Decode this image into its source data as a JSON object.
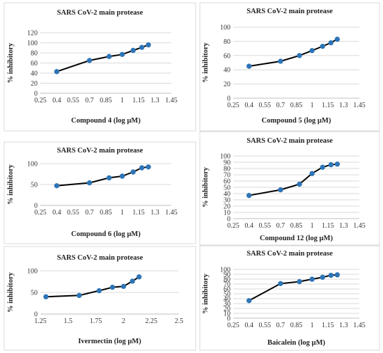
{
  "chart_data": [
    {
      "type": "line",
      "title": "SARS CoV-2 main protease",
      "xlabel": "Compound 4 (log µM)",
      "ylabel": "% inhibitory",
      "xlim": [
        0.25,
        1.45
      ],
      "ylim": [
        0,
        120
      ],
      "xticks": [
        "0.25",
        "0.4",
        "0.55",
        "0.7",
        "0.85",
        "1",
        "1.15",
        "1.3",
        "1.45"
      ],
      "yticks": [
        "0",
        "20",
        "40",
        "60",
        "80",
        "100",
        "120"
      ],
      "grid": true,
      "points": [
        {
          "x": 0.4,
          "y": 43
        },
        {
          "x": 0.7,
          "y": 65
        },
        {
          "x": 0.88,
          "y": 73
        },
        {
          "x": 1.0,
          "y": 77
        },
        {
          "x": 1.1,
          "y": 85
        },
        {
          "x": 1.18,
          "y": 91
        },
        {
          "x": 1.24,
          "y": 96
        }
      ]
    },
    {
      "type": "line",
      "title": "SARS CoV-2 main protease",
      "xlabel": "Compound 5 (log µM)",
      "ylabel": "% inhibitory",
      "xlim": [
        0.25,
        1.45
      ],
      "ylim": [
        0,
        100
      ],
      "xticks": [
        "0.25",
        "0.4",
        "0.55",
        "0.7",
        "0.85",
        "1",
        "1.15",
        "1.3",
        "1.45"
      ],
      "yticks": [
        "0",
        "20",
        "40",
        "60",
        "80",
        "100"
      ],
      "grid": true,
      "points": [
        {
          "x": 0.4,
          "y": 45
        },
        {
          "x": 0.7,
          "y": 52
        },
        {
          "x": 0.88,
          "y": 60
        },
        {
          "x": 1.0,
          "y": 67
        },
        {
          "x": 1.1,
          "y": 73
        },
        {
          "x": 1.18,
          "y": 78
        },
        {
          "x": 1.24,
          "y": 83
        }
      ]
    },
    {
      "type": "line",
      "title": "SARS CoV-2 main protease",
      "xlabel": "Compound 6 (log µM)",
      "ylabel": "% inhibitory",
      "xlim": [
        0.25,
        1.45
      ],
      "ylim": [
        0,
        100
      ],
      "xticks": [
        "0.25",
        "0.4",
        "0.55",
        "0.7",
        "0.85",
        "1",
        "1.15",
        "1.3",
        "1.45"
      ],
      "yticks": [
        "0",
        "50",
        "100"
      ],
      "grid": true,
      "points": [
        {
          "x": 0.4,
          "y": 47
        },
        {
          "x": 0.7,
          "y": 54
        },
        {
          "x": 0.88,
          "y": 66
        },
        {
          "x": 1.0,
          "y": 70
        },
        {
          "x": 1.1,
          "y": 80
        },
        {
          "x": 1.18,
          "y": 90
        },
        {
          "x": 1.24,
          "y": 92
        }
      ]
    },
    {
      "type": "line",
      "title": "SARS CoV-2 main protease",
      "xlabel": "Compound 12 (log µM)",
      "ylabel": "% inhibitory",
      "xlim": [
        0.25,
        1.45
      ],
      "ylim": [
        0,
        100
      ],
      "xticks": [
        "0.25",
        "0.4",
        "0.55",
        "0.7",
        "0.85",
        "1",
        "1.15",
        "1.3",
        "1.45"
      ],
      "yticks": [
        "0",
        "10",
        "20",
        "30",
        "40",
        "50",
        "60",
        "70",
        "80",
        "90",
        "100"
      ],
      "grid": true,
      "points": [
        {
          "x": 0.4,
          "y": 37
        },
        {
          "x": 0.7,
          "y": 46
        },
        {
          "x": 0.88,
          "y": 55
        },
        {
          "x": 1.0,
          "y": 72
        },
        {
          "x": 1.1,
          "y": 82
        },
        {
          "x": 1.18,
          "y": 86
        },
        {
          "x": 1.24,
          "y": 87
        }
      ]
    },
    {
      "type": "line",
      "title": "SARS CoV-2 main protease",
      "xlabel": "Ivermectin (log µM)",
      "ylabel": "% inhibitory",
      "xlim": [
        1.25,
        2.5
      ],
      "ylim": [
        0,
        100
      ],
      "xticks": [
        "1.25",
        "1.5",
        "1.75",
        "2",
        "2.25",
        "2.5"
      ],
      "yticks": [
        "0",
        "50",
        "100"
      ],
      "grid": true,
      "points": [
        {
          "x": 1.3,
          "y": 40
        },
        {
          "x": 1.6,
          "y": 43
        },
        {
          "x": 1.78,
          "y": 54
        },
        {
          "x": 1.9,
          "y": 62
        },
        {
          "x": 2.0,
          "y": 64
        },
        {
          "x": 2.08,
          "y": 76
        },
        {
          "x": 2.14,
          "y": 86
        }
      ]
    },
    {
      "type": "line",
      "title": "SARS CoV-2 main protease",
      "xlabel": "Baicalein (log µM)",
      "ylabel": "% inhibitory",
      "xlim": [
        0.25,
        1.45
      ],
      "ylim": [
        0,
        100
      ],
      "xticks": [
        "0.25",
        "0.4",
        "0.55",
        "0.7",
        "0.85",
        "1",
        "1.15",
        "1.3",
        "1.45"
      ],
      "yticks": [
        "0",
        "10",
        "20",
        "30",
        "40",
        "50",
        "60",
        "70",
        "80",
        "90",
        "100"
      ],
      "grid": true,
      "points": [
        {
          "x": 0.4,
          "y": 36
        },
        {
          "x": 0.7,
          "y": 71
        },
        {
          "x": 0.88,
          "y": 75
        },
        {
          "x": 1.0,
          "y": 80
        },
        {
          "x": 1.1,
          "y": 84
        },
        {
          "x": 1.18,
          "y": 88
        },
        {
          "x": 1.24,
          "y": 89
        }
      ]
    }
  ],
  "colors": {
    "line": "#000000",
    "marker": "#2e75b6",
    "grid": "#d9d9d9"
  }
}
